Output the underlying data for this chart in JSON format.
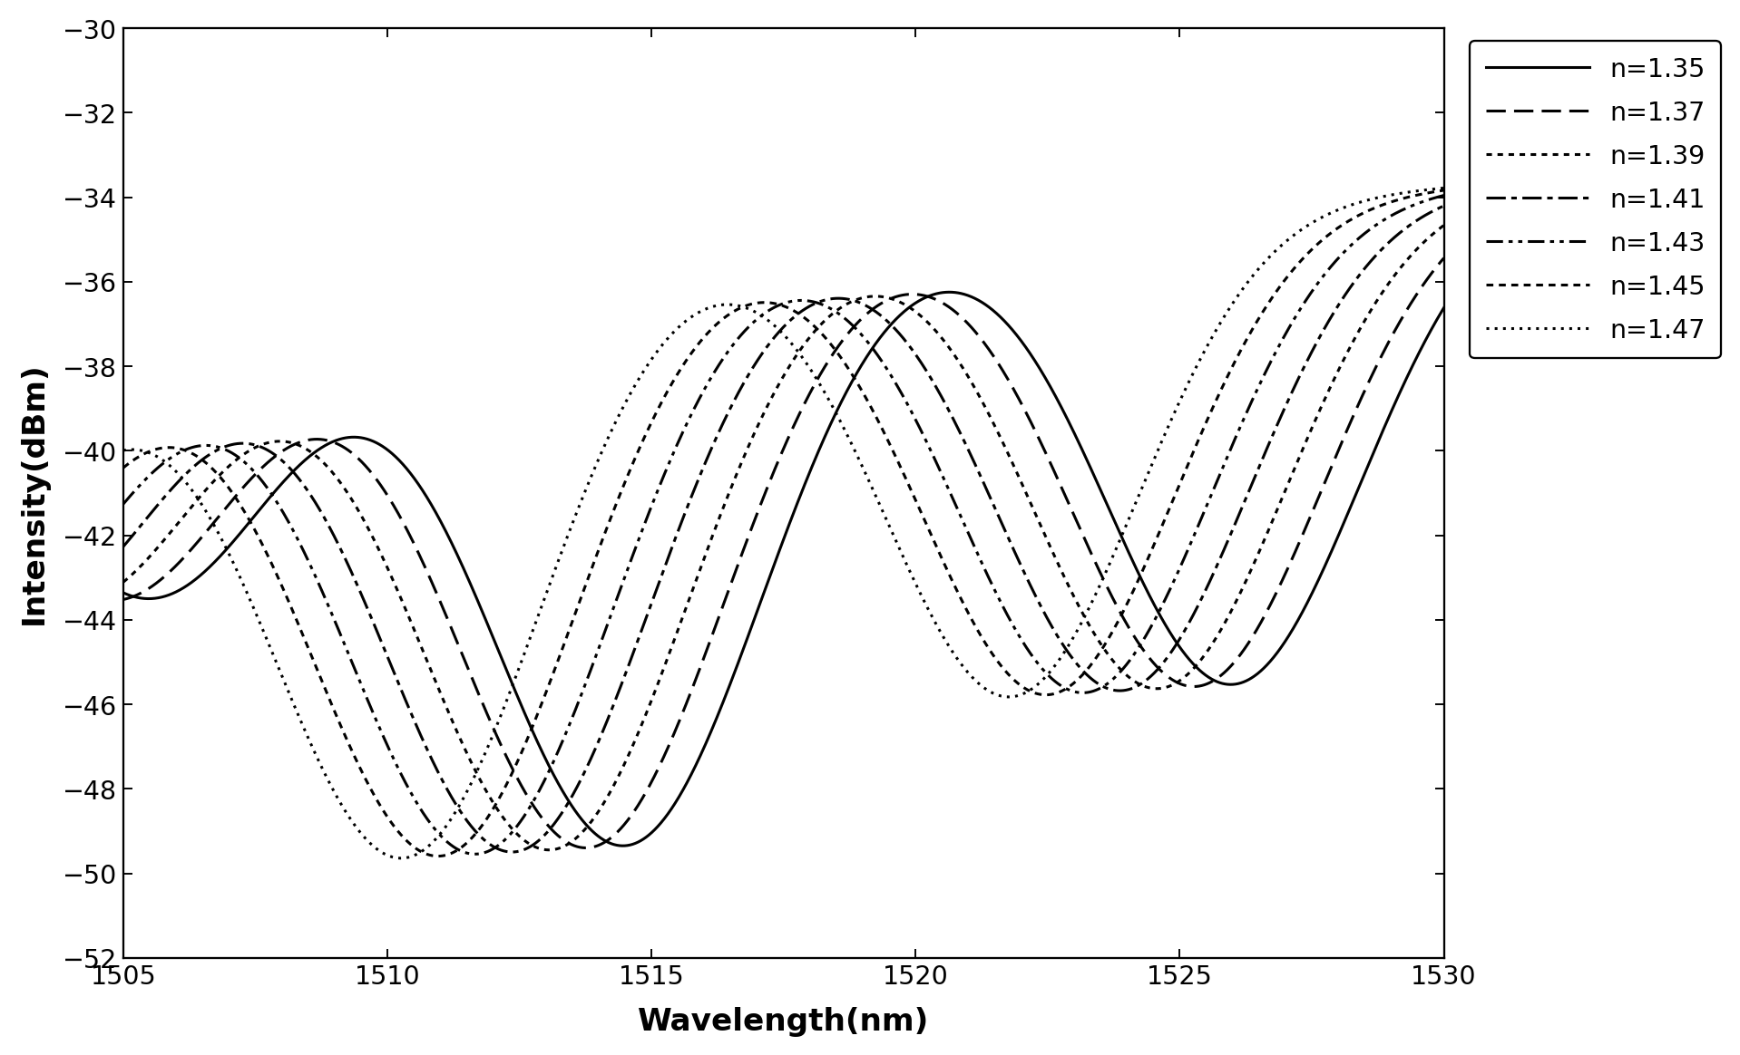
{
  "xlabel": "Wavelength(nm)",
  "ylabel": "Intensity(dBm)",
  "xlim": [
    1505,
    1530
  ],
  "ylim": [
    -52,
    -30
  ],
  "xticks": [
    1505,
    1510,
    1515,
    1520,
    1525,
    1530
  ],
  "yticks": [
    -52,
    -50,
    -48,
    -46,
    -44,
    -42,
    -40,
    -38,
    -36,
    -34,
    -32,
    -30
  ],
  "series": [
    {
      "label": "n=1.35",
      "linestyle": "solid",
      "shift": 0.0
    },
    {
      "label": "n=1.37",
      "linestyle": "dashed",
      "shift": -0.7
    },
    {
      "label": "n=1.39",
      "linestyle": "dotted_fine",
      "shift": -1.4
    },
    {
      "label": "n=1.41",
      "linestyle": "dashdot",
      "shift": -2.1
    },
    {
      "label": "n=1.43",
      "linestyle": "dashdotdot",
      "shift": -2.8
    },
    {
      "label": "n=1.45",
      "linestyle": "dotted_med",
      "shift": -3.5
    },
    {
      "label": "n=1.47",
      "linestyle": "dotted_loose",
      "shift": -4.2
    }
  ],
  "background_color": "#ffffff",
  "font_size": 18,
  "tick_fontsize": 15,
  "legend_fontsize": 15,
  "linewidth": 1.6
}
